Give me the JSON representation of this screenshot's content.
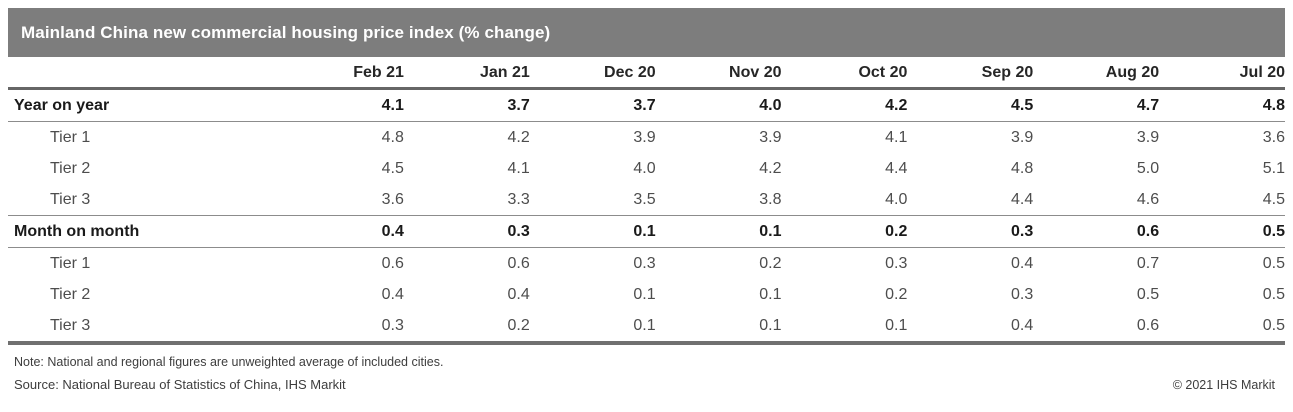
{
  "title": "Mainland China new commercial housing price index (% change)",
  "colors": {
    "title_bar_gray": "#7d7d7d",
    "title_text": "#ffffff",
    "section_text": "#1a1a1a",
    "tier_text": "#4d4d4d",
    "header_rule": "#666666",
    "row_rule": "#8c8c8c",
    "bottom_rule": "#707070"
  },
  "table": {
    "columns": [
      "Feb 21",
      "Jan 21",
      "Dec 20",
      "Nov 20",
      "Oct 20",
      "Sep 20",
      "Aug 20",
      "Jul 20"
    ],
    "rows": [
      {
        "label": "Year on year",
        "values": [
          "4.1",
          "3.7",
          "3.7",
          "4.0",
          "4.2",
          "4.5",
          "4.7",
          "4.8"
        ]
      },
      {
        "label": "Tier 1",
        "values": [
          "4.8",
          "4.2",
          "3.9",
          "3.9",
          "4.1",
          "3.9",
          "3.9",
          "3.6"
        ]
      },
      {
        "label": "Tier 2",
        "values": [
          "4.5",
          "4.1",
          "4.0",
          "4.2",
          "4.4",
          "4.8",
          "5.0",
          "5.1"
        ]
      },
      {
        "label": "Tier 3",
        "values": [
          "3.6",
          "3.3",
          "3.5",
          "3.8",
          "4.0",
          "4.4",
          "4.6",
          "4.5"
        ]
      },
      {
        "label": "Month on month",
        "values": [
          "0.4",
          "0.3",
          "0.1",
          "0.1",
          "0.2",
          "0.3",
          "0.6",
          "0.5"
        ]
      },
      {
        "label": "Tier 1",
        "values": [
          "0.6",
          "0.6",
          "0.3",
          "0.2",
          "0.3",
          "0.4",
          "0.7",
          "0.5"
        ]
      },
      {
        "label": "Tier 2",
        "values": [
          "0.4",
          "0.4",
          "0.1",
          "0.1",
          "0.2",
          "0.3",
          "0.5",
          "0.5"
        ]
      },
      {
        "label": "Tier 3",
        "values": [
          "0.3",
          "0.2",
          "0.1",
          "0.1",
          "0.1",
          "0.4",
          "0.6",
          "0.5"
        ]
      }
    ]
  },
  "footer": {
    "note": "Note: National and regional figures are unweighted average of included cities.",
    "source": "Source: National Bureau of Statistics of China, IHS Markit",
    "copyright": "© 2021 IHS Markit"
  },
  "chart_data": {
    "type": "table",
    "title": "Mainland China new commercial housing price index (% change)",
    "categories": [
      "Feb 21",
      "Jan 21",
      "Dec 20",
      "Nov 20",
      "Oct 20",
      "Sep 20",
      "Aug 20",
      "Jul 20"
    ],
    "series": [
      {
        "name": "Year on year",
        "values": [
          4.1,
          3.7,
          3.7,
          4.0,
          4.2,
          4.5,
          4.7,
          4.8
        ]
      },
      {
        "name": "Year on year Tier 1",
        "values": [
          4.8,
          4.2,
          3.9,
          3.9,
          4.1,
          3.9,
          3.9,
          3.6
        ]
      },
      {
        "name": "Year on year Tier 2",
        "values": [
          4.5,
          4.1,
          4.0,
          4.2,
          4.4,
          4.8,
          5.0,
          5.1
        ]
      },
      {
        "name": "Year on year Tier 3",
        "values": [
          3.6,
          3.3,
          3.5,
          3.8,
          4.0,
          4.4,
          4.6,
          4.5
        ]
      },
      {
        "name": "Month on month",
        "values": [
          0.4,
          0.3,
          0.1,
          0.1,
          0.2,
          0.3,
          0.6,
          0.5
        ]
      },
      {
        "name": "Month on month Tier 1",
        "values": [
          0.6,
          0.6,
          0.3,
          0.2,
          0.3,
          0.4,
          0.7,
          0.5
        ]
      },
      {
        "name": "Month on month Tier 2",
        "values": [
          0.4,
          0.4,
          0.1,
          0.1,
          0.2,
          0.3,
          0.5,
          0.5
        ]
      },
      {
        "name": "Month on month Tier 3",
        "values": [
          0.3,
          0.2,
          0.1,
          0.1,
          0.1,
          0.4,
          0.6,
          0.5
        ]
      }
    ],
    "note": "National and regional figures are unweighted average of included cities.",
    "source": "National Bureau of Statistics of China, IHS Markit"
  }
}
